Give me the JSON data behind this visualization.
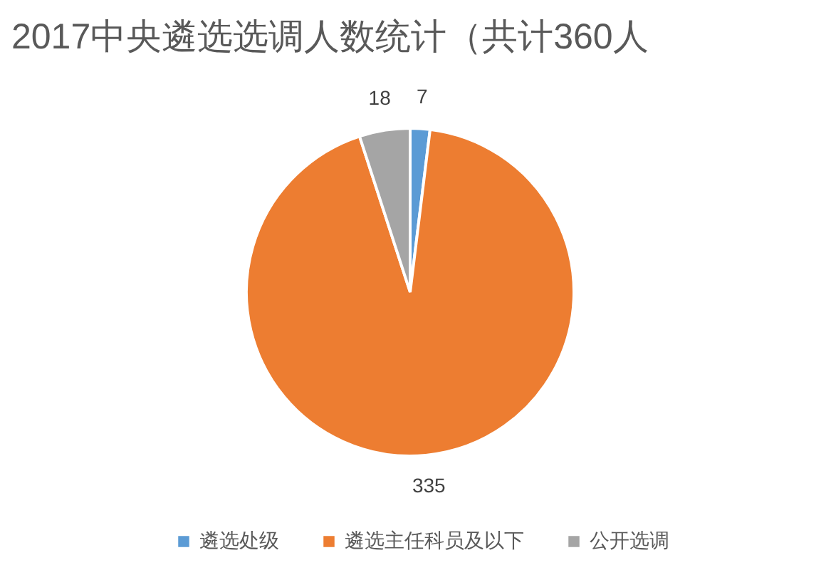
{
  "chart_data": {
    "type": "pie",
    "title": "2017中央遴选选调人数统计（共计360人",
    "categories": [
      "遴选处级",
      "遴选主任科员及以下",
      "公开选调"
    ],
    "values": [
      7,
      335,
      18
    ],
    "colors": [
      "#5b9bd5",
      "#ed7d31",
      "#a5a5a5"
    ],
    "data_labels": true,
    "legend": "bottom"
  }
}
